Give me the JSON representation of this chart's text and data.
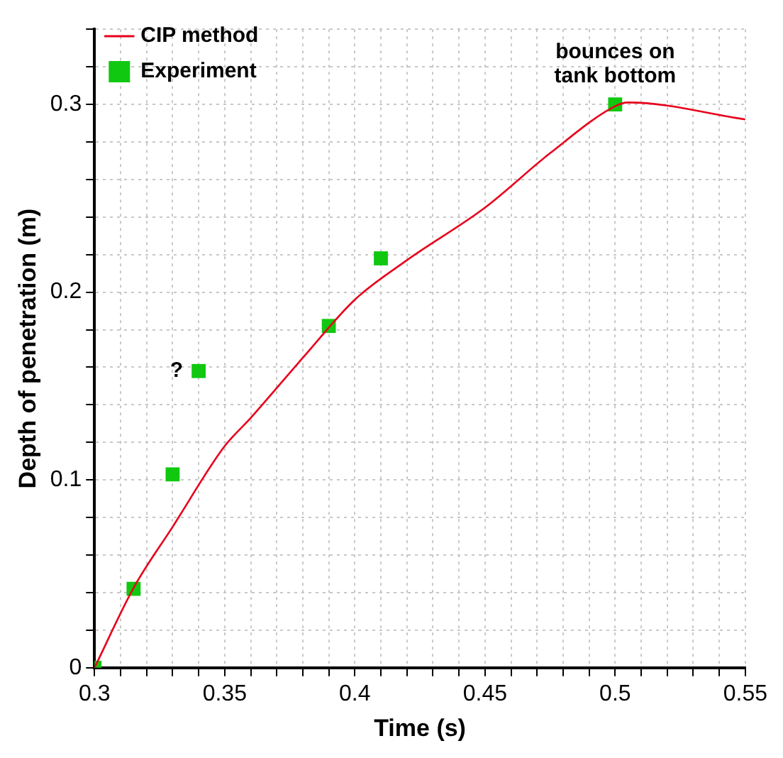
{
  "chart_data": {
    "type": "line",
    "xlabel": "Time (s)",
    "ylabel": "Depth of penetration (m)",
    "xlim": [
      0.3,
      0.55
    ],
    "xticks": [
      0.3,
      {
        "value": 0.31,
        "label": null
      },
      {
        "value": 0.32,
        "label": null
      },
      {
        "value": 0.33,
        "label": null
      },
      {
        "value": 0.34,
        "label": null
      },
      0.35,
      {
        "value": 0.36,
        "label": null
      },
      {
        "value": 0.37,
        "label": null
      },
      {
        "value": 0.38,
        "label": null
      },
      {
        "value": 0.39,
        "label": null
      },
      0.4,
      {
        "value": 0.41,
        "label": null
      },
      {
        "value": 0.42,
        "label": null
      },
      {
        "value": 0.43,
        "label": null
      },
      {
        "value": 0.44,
        "label": null
      },
      0.45,
      {
        "value": 0.46,
        "label": null
      },
      {
        "value": 0.47,
        "label": null
      },
      {
        "value": 0.48,
        "label": null
      },
      {
        "value": 0.49,
        "label": null
      },
      0.5,
      {
        "value": 0.51,
        "label": null
      },
      {
        "value": 0.52,
        "label": null
      },
      {
        "value": 0.53,
        "label": null
      },
      {
        "value": 0.54,
        "label": null
      },
      0.55
    ],
    "ylim": [
      0,
      0.34
    ],
    "yticks": [
      0,
      {
        "value": 0.02,
        "label": null
      },
      {
        "value": 0.04,
        "label": null
      },
      {
        "value": 0.06,
        "label": null
      },
      {
        "value": 0.08,
        "label": null
      },
      0.1,
      {
        "value": 0.12,
        "label": null
      },
      {
        "value": 0.14,
        "label": null
      },
      {
        "value": 0.16,
        "label": null
      },
      {
        "value": 0.18,
        "label": null
      },
      0.2,
      {
        "value": 0.22,
        "label": null
      },
      {
        "value": 0.24,
        "label": null
      },
      {
        "value": 0.26,
        "label": null
      },
      {
        "value": 0.28,
        "label": null
      },
      0.3,
      {
        "value": 0.32,
        "label": null
      },
      {
        "value": 0.34,
        "label": null
      }
    ],
    "grid": true,
    "legend": "top left",
    "series": [
      {
        "name": "CIP method",
        "color": "#e8001c",
        "marker": "none",
        "line_style": "solid",
        "x": [
          0.3,
          0.315,
          0.33,
          0.35,
          0.36,
          0.38,
          0.4,
          0.42,
          0.45,
          0.475,
          0.5,
          0.505,
          0.55
        ],
        "values": [
          0,
          0.0425,
          0.075,
          0.118,
          0.133,
          0.165,
          0.196,
          0.217,
          0.245,
          0.274,
          0.299,
          0.301,
          0.292
        ]
      },
      {
        "name": "Experiment",
        "type": "scatter",
        "color": "#10c810",
        "marker": "square",
        "x": [
          0.3,
          0.315,
          0.33,
          0.34,
          0.39,
          0.41,
          0.5
        ],
        "values": [
          0,
          0.042,
          0.103,
          0.158,
          0.182,
          0.218,
          0.3
        ]
      }
    ],
    "annotations": [
      {
        "text": "?",
        "x": 0.34,
        "y": 0.158
      },
      {
        "text": "bounces on\ntank bottom",
        "x": 0.5,
        "y": 0.3
      }
    ]
  }
}
